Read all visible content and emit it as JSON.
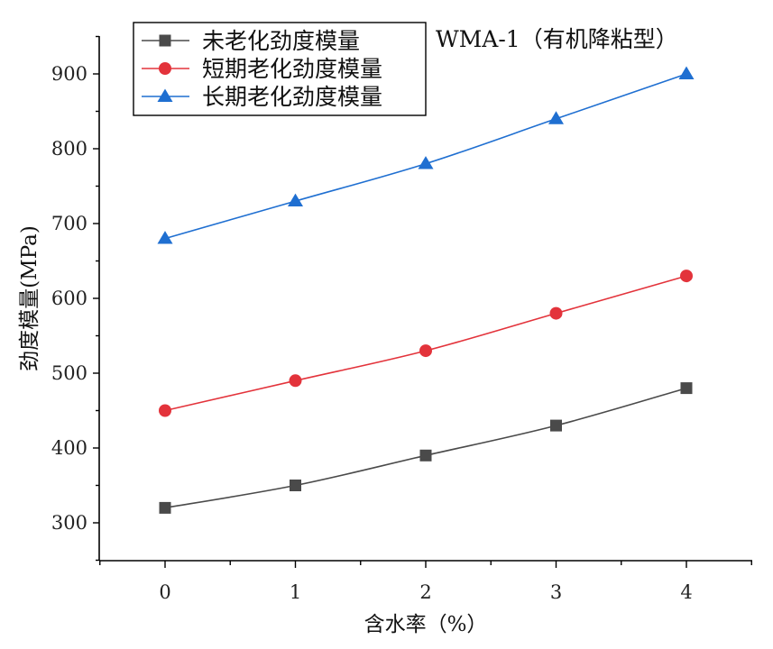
{
  "chart_data": {
    "type": "line",
    "title": "",
    "annotation": "WMA-1（有机降粘型）",
    "xlabel": "含水率（%）",
    "ylabel": "劲度模量(MPa)",
    "x": [
      0,
      1,
      2,
      3,
      4
    ],
    "x_tick_labels": [
      "0",
      "1",
      "2",
      "3",
      "4"
    ],
    "xlim": [
      -0.5,
      4.5
    ],
    "ylim": [
      250,
      950
    ],
    "y_ticks": [
      300,
      400,
      500,
      600,
      700,
      800,
      900
    ],
    "y_tick_labels": [
      "300",
      "400",
      "500",
      "600",
      "700",
      "800",
      "900"
    ],
    "grid": false,
    "legend_position": "top-left",
    "series": [
      {
        "name": "未老化劲度模量",
        "values": [
          320,
          350,
          390,
          430,
          480
        ],
        "color": "#4a4a4a",
        "marker": "square"
      },
      {
        "name": "短期老化劲度模量",
        "values": [
          450,
          490,
          530,
          580,
          630
        ],
        "color": "#e3333b",
        "marker": "circle"
      },
      {
        "name": "长期老化劲度模量",
        "values": [
          680,
          730,
          780,
          840,
          900
        ],
        "color": "#1f6fd1",
        "marker": "triangle"
      }
    ]
  }
}
